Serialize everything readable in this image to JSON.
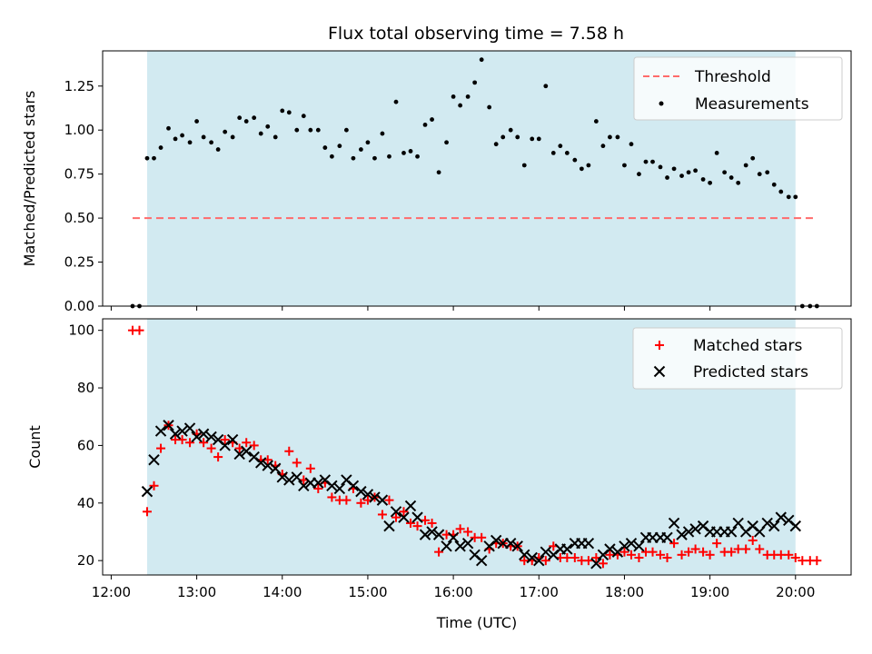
{
  "title": "Flux total observing time = 7.58 h",
  "colors": {
    "shade": "#add8e6",
    "threshold": "#ff6b6b",
    "matched": "#ff0000",
    "predicted": "#000000",
    "measurement": "#000000"
  },
  "chart_data": [
    {
      "type": "scatter",
      "ylabel": "Matched/Predicted stars",
      "xlim": [
        11.9,
        20.65
      ],
      "ylim": [
        0,
        1.45
      ],
      "yticks": [
        0.0,
        0.25,
        0.5,
        0.75,
        1.0,
        1.25
      ],
      "ytick_labels": [
        "0.00",
        "0.25",
        "0.50",
        "0.75",
        "1.00",
        "1.25"
      ],
      "shaded_region": [
        12.42,
        20.0
      ],
      "legend_position": "upper-right",
      "threshold": {
        "name": "Threshold",
        "y": 0.5,
        "x": [
          12.25,
          20.25
        ]
      },
      "series": [
        {
          "name": "Measurements",
          "x": [
            12.25,
            12.33,
            12.42,
            12.5,
            12.58,
            12.67,
            12.75,
            12.83,
            12.92,
            13.0,
            13.08,
            13.17,
            13.25,
            13.33,
            13.42,
            13.5,
            13.58,
            13.67,
            13.75,
            13.83,
            13.92,
            14.0,
            14.08,
            14.17,
            14.25,
            14.33,
            14.42,
            14.5,
            14.58,
            14.67,
            14.75,
            14.83,
            14.92,
            15.0,
            15.08,
            15.17,
            15.25,
            15.33,
            15.42,
            15.5,
            15.58,
            15.67,
            15.75,
            15.83,
            15.92,
            16.0,
            16.08,
            16.17,
            16.25,
            16.33,
            16.42,
            16.5,
            16.58,
            16.67,
            16.75,
            16.83,
            16.92,
            17.0,
            17.08,
            17.17,
            17.25,
            17.33,
            17.42,
            17.5,
            17.58,
            17.67,
            17.75,
            17.83,
            17.92,
            18.0,
            18.08,
            18.17,
            18.25,
            18.33,
            18.42,
            18.5,
            18.58,
            18.67,
            18.75,
            18.83,
            18.92,
            19.0,
            19.08,
            19.17,
            19.25,
            19.33,
            19.42,
            19.5,
            19.58,
            19.67,
            19.75,
            19.83,
            19.92,
            20.0,
            20.08,
            20.17,
            20.25
          ],
          "y": [
            0.0,
            0.0,
            0.84,
            0.84,
            0.9,
            1.01,
            0.95,
            0.97,
            0.93,
            1.05,
            0.96,
            0.93,
            0.89,
            0.99,
            0.96,
            1.07,
            1.05,
            1.07,
            0.98,
            1.02,
            0.96,
            1.11,
            1.1,
            1.0,
            1.08,
            1.0,
            1.0,
            0.9,
            0.85,
            0.91,
            1.0,
            0.84,
            0.89,
            0.93,
            0.84,
            0.98,
            0.85,
            1.16,
            0.87,
            0.88,
            0.85,
            1.03,
            1.06,
            0.76,
            0.93,
            1.19,
            1.14,
            1.19,
            1.27,
            1.4,
            1.13,
            0.92,
            0.96,
            1.0,
            0.96,
            0.8,
            0.95,
            0.95,
            1.25,
            0.87,
            0.91,
            0.87,
            0.83,
            0.78,
            0.8,
            1.05,
            0.91,
            0.96,
            0.96,
            0.8,
            0.92,
            0.75,
            0.82,
            0.82,
            0.79,
            0.73,
            0.78,
            0.74,
            0.76,
            0.77,
            0.72,
            0.7,
            0.87,
            0.76,
            0.73,
            0.7,
            0.8,
            0.84,
            0.75,
            0.76,
            0.69,
            0.65,
            0.62,
            0.62,
            0.0,
            0.0,
            0.0
          ]
        }
      ]
    },
    {
      "type": "scatter",
      "xlabel": "Time (UTC)",
      "ylabel": "Count",
      "xlim": [
        11.9,
        20.65
      ],
      "ylim": [
        15,
        104
      ],
      "xticks": [
        12,
        13,
        14,
        15,
        16,
        17,
        18,
        19,
        20
      ],
      "xtick_labels": [
        "12:00",
        "13:00",
        "14:00",
        "15:00",
        "16:00",
        "17:00",
        "18:00",
        "19:00",
        "20:00"
      ],
      "yticks": [
        20,
        40,
        60,
        80,
        100
      ],
      "ytick_labels": [
        "20",
        "40",
        "60",
        "80",
        "100"
      ],
      "shaded_region": [
        12.42,
        20.0
      ],
      "legend_position": "upper-right",
      "series": [
        {
          "name": "Matched stars",
          "marker": "plus",
          "x": [
            12.25,
            12.33,
            12.42,
            12.5,
            12.58,
            12.67,
            12.75,
            12.83,
            12.92,
            13.0,
            13.08,
            13.17,
            13.25,
            13.33,
            13.42,
            13.5,
            13.58,
            13.67,
            13.75,
            13.83,
            13.92,
            14.0,
            14.08,
            14.17,
            14.25,
            14.33,
            14.42,
            14.5,
            14.58,
            14.67,
            14.75,
            14.83,
            14.92,
            15.0,
            15.08,
            15.17,
            15.25,
            15.33,
            15.42,
            15.5,
            15.58,
            15.67,
            15.75,
            15.83,
            15.92,
            16.0,
            16.08,
            16.17,
            16.25,
            16.33,
            16.42,
            16.5,
            16.58,
            16.67,
            16.75,
            16.83,
            16.92,
            17.0,
            17.08,
            17.17,
            17.25,
            17.33,
            17.42,
            17.5,
            17.58,
            17.67,
            17.75,
            17.83,
            17.92,
            18.0,
            18.08,
            18.17,
            18.25,
            18.33,
            18.42,
            18.5,
            18.58,
            18.67,
            18.75,
            18.83,
            18.92,
            19.0,
            19.08,
            19.17,
            19.25,
            19.33,
            19.42,
            19.5,
            19.58,
            19.67,
            19.75,
            19.83,
            19.92,
            20.0,
            20.08,
            20.17,
            20.25
          ],
          "y": [
            100,
            100,
            37,
            46,
            59,
            67,
            62,
            62,
            61,
            64,
            61,
            59,
            56,
            62,
            61,
            59,
            61,
            60,
            55,
            55,
            53,
            50,
            58,
            54,
            48,
            52,
            45,
            47,
            42,
            41,
            41,
            45,
            40,
            41,
            42,
            36,
            41,
            35,
            37,
            33,
            32,
            34,
            33,
            23,
            29,
            29,
            31,
            30,
            28,
            28,
            24,
            26,
            26,
            25,
            25,
            20,
            20,
            21,
            20,
            25,
            21,
            21,
            21,
            20,
            20,
            21,
            19,
            22,
            22,
            23,
            22,
            21,
            23,
            23,
            22,
            21,
            26,
            22,
            23,
            24,
            23,
            22,
            26,
            23,
            23,
            24,
            24,
            27,
            24,
            22,
            22,
            22,
            22,
            21,
            20,
            20,
            20
          ]
        },
        {
          "name": "Predicted stars",
          "marker": "x",
          "x": [
            12.42,
            12.5,
            12.58,
            12.67,
            12.75,
            12.83,
            12.92,
            13.0,
            13.08,
            13.17,
            13.25,
            13.33,
            13.42,
            13.5,
            13.58,
            13.67,
            13.75,
            13.83,
            13.92,
            14.0,
            14.08,
            14.17,
            14.25,
            14.33,
            14.42,
            14.5,
            14.58,
            14.67,
            14.75,
            14.83,
            14.92,
            15.0,
            15.08,
            15.17,
            15.25,
            15.33,
            15.42,
            15.5,
            15.58,
            15.67,
            15.75,
            15.83,
            15.92,
            16.0,
            16.08,
            16.17,
            16.25,
            16.33,
            16.42,
            16.5,
            16.58,
            16.67,
            16.75,
            16.83,
            16.92,
            17.0,
            17.08,
            17.17,
            17.25,
            17.33,
            17.42,
            17.5,
            17.58,
            17.67,
            17.75,
            17.83,
            17.92,
            18.0,
            18.08,
            18.17,
            18.25,
            18.33,
            18.42,
            18.5,
            18.58,
            18.67,
            18.75,
            18.83,
            18.92,
            19.0,
            19.08,
            19.17,
            19.25,
            19.33,
            19.42,
            19.5,
            19.58,
            19.67,
            19.75,
            19.83,
            19.92,
            20.0
          ],
          "y": [
            44,
            55,
            65,
            67,
            64,
            65,
            66,
            63,
            64,
            63,
            62,
            60,
            62,
            57,
            58,
            56,
            54,
            53,
            52,
            49,
            48,
            49,
            46,
            47,
            47,
            48,
            46,
            45,
            48,
            46,
            44,
            43,
            42,
            41,
            32,
            37,
            35,
            39,
            35,
            29,
            30,
            29,
            25,
            28,
            25,
            26,
            22,
            20,
            25,
            27,
            26,
            26,
            25,
            22,
            21,
            20,
            23,
            22,
            24,
            24,
            26,
            26,
            26,
            19,
            22,
            24,
            23,
            25,
            26,
            25,
            28,
            28,
            28,
            28,
            33,
            29,
            30,
            31,
            32,
            30,
            30,
            30,
            30,
            33,
            30,
            32,
            30,
            33,
            32,
            35,
            34,
            32
          ]
        }
      ]
    }
  ]
}
